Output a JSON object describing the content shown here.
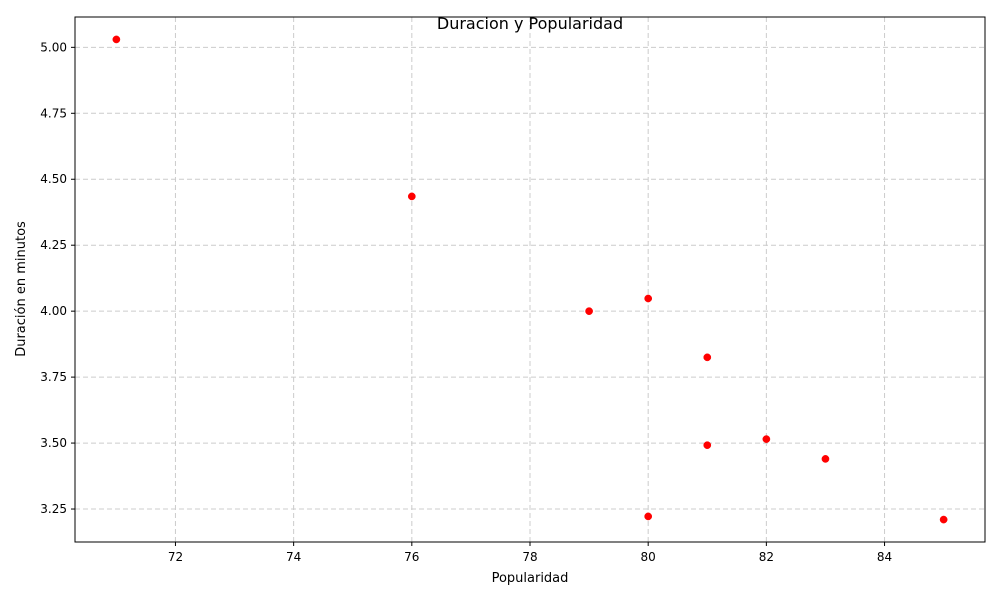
{
  "chart_data": {
    "type": "scatter",
    "title": "Duracion y Popularidad",
    "xlabel": "Popularidad",
    "ylabel": "Duración en minutos",
    "xlim": [
      70.3,
      85.7
    ],
    "ylim": [
      3.125,
      5.115
    ],
    "xticks": [
      72,
      74,
      76,
      78,
      80,
      82,
      84
    ],
    "yticks": [
      "3.25",
      "3.50",
      "3.75",
      "4.00",
      "4.25",
      "4.50",
      "4.75",
      "5.00"
    ],
    "grid": true,
    "marker_color": "#ff0000",
    "points": [
      {
        "x": 71,
        "y": 5.03
      },
      {
        "x": 76,
        "y": 4.435
      },
      {
        "x": 79,
        "y": 4.0
      },
      {
        "x": 80,
        "y": 4.048
      },
      {
        "x": 81,
        "y": 3.825
      },
      {
        "x": 82,
        "y": 3.515
      },
      {
        "x": 81,
        "y": 3.492
      },
      {
        "x": 83,
        "y": 3.44
      },
      {
        "x": 80,
        "y": 3.222
      },
      {
        "x": 85,
        "y": 3.21
      }
    ]
  }
}
